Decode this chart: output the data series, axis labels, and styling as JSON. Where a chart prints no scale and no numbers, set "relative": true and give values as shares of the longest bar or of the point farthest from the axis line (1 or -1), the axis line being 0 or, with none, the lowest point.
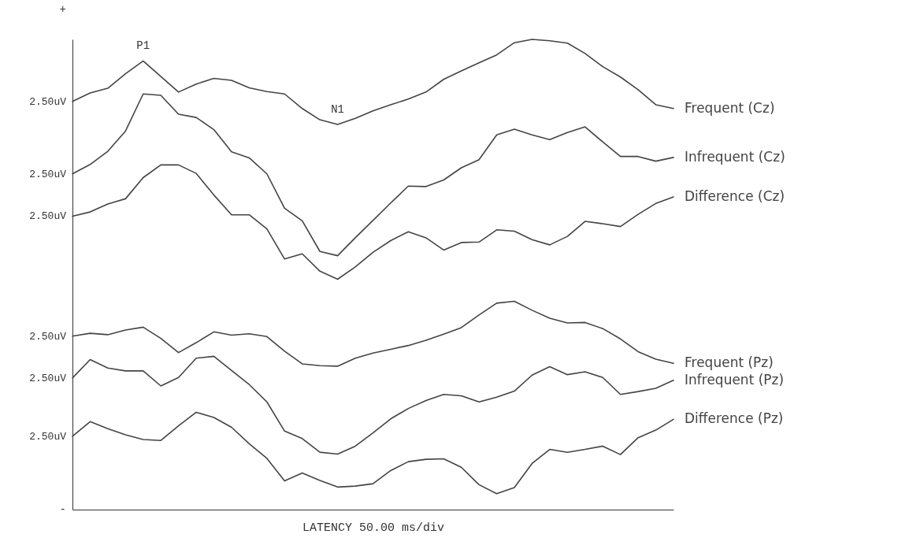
{
  "chart_data": {
    "type": "line",
    "relative": true,
    "xlabel": "LATENCY 50.00 ms/div",
    "categories": [
      null,
      null,
      null,
      null,
      null,
      null,
      null,
      null,
      null,
      null,
      null,
      null,
      null,
      null,
      null,
      null,
      null,
      null,
      null,
      null,
      null,
      null,
      null,
      null,
      null,
      null,
      null,
      null,
      null,
      null,
      null,
      null,
      null,
      null,
      null
    ],
    "grid": false,
    "legend": false,
    "marker": "none",
    "line_style": "solid",
    "series": [
      {
        "name": "Frequent (Cz)",
        "color": "#444444",
        "values": [
          0.868,
          0.886,
          0.896,
          0.927,
          0.954,
          0.921,
          0.888,
          0.905,
          0.917,
          0.913,
          0.897,
          0.889,
          0.884,
          0.853,
          0.829,
          0.819,
          0.832,
          0.848,
          0.861,
          0.873,
          0.888,
          0.915,
          0.933,
          0.95,
          0.967,
          0.993,
          1,
          0.997,
          0.992,
          0.97,
          0.942,
          0.92,
          0.893,
          0.861,
          0.853
        ]
      },
      {
        "name": "Infrequent (Cz)",
        "color": "#444444",
        "values": [
          0.714,
          0.734,
          0.762,
          0.805,
          0.884,
          0.881,
          0.841,
          0.834,
          0.808,
          0.761,
          0.748,
          0.714,
          0.641,
          0.614,
          0.549,
          0.54,
          0.578,
          0.615,
          0.652,
          0.688,
          0.687,
          0.701,
          0.727,
          0.744,
          0.797,
          0.809,
          0.797,
          0.787,
          0.802,
          0.814,
          0.782,
          0.751,
          0.751,
          0.741,
          0.749
        ]
      },
      {
        "name": "Difference (Cz)",
        "color": "#444444",
        "values": [
          0.624,
          0.633,
          0.65,
          0.661,
          0.706,
          0.733,
          0.733,
          0.715,
          0.669,
          0.627,
          0.627,
          0.597,
          0.533,
          0.544,
          0.507,
          0.49,
          0.516,
          0.547,
          0.572,
          0.591,
          0.578,
          0.552,
          0.568,
          0.569,
          0.595,
          0.592,
          0.574,
          0.563,
          0.581,
          0.613,
          0.608,
          0.602,
          0.628,
          0.651,
          0.665
        ]
      },
      {
        "name": "Frequent (Pz)",
        "color": "#444444",
        "values": [
          0.369,
          0.375,
          0.372,
          0.382,
          0.388,
          0.364,
          0.334,
          0.355,
          0.378,
          0.371,
          0.374,
          0.368,
          0.337,
          0.31,
          0.306,
          0.305,
          0.322,
          0.333,
          0.341,
          0.349,
          0.36,
          0.373,
          0.387,
          0.414,
          0.439,
          0.443,
          0.424,
          0.407,
          0.397,
          0.398,
          0.385,
          0.363,
          0.336,
          0.32,
          0.311
        ]
      },
      {
        "name": "Infrequent (Pz)",
        "color": "#444444",
        "values": [
          0.28,
          0.319,
          0.301,
          0.295,
          0.295,
          0.263,
          0.281,
          0.322,
          0.326,
          0.296,
          0.266,
          0.229,
          0.167,
          0.151,
          0.122,
          0.118,
          0.135,
          0.163,
          0.193,
          0.215,
          0.232,
          0.245,
          0.242,
          0.229,
          0.239,
          0.252,
          0.286,
          0.304,
          0.287,
          0.293,
          0.281,
          0.245,
          0.251,
          0.258,
          0.275
        ]
      },
      {
        "name": "Difference (Pz)",
        "color": "#444444",
        "values": [
          0.156,
          0.187,
          0.172,
          0.159,
          0.149,
          0.147,
          0.178,
          0.207,
          0.196,
          0.175,
          0.14,
          0.109,
          0.061,
          0.078,
          0.062,
          0.048,
          0.05,
          0.055,
          0.083,
          0.102,
          0.107,
          0.108,
          0.09,
          0.053,
          0.034,
          0.047,
          0.098,
          0.128,
          0.122,
          0.128,
          0.135,
          0.117,
          0.153,
          0.169,
          0.192
        ]
      }
    ],
    "annotations": [
      "P1",
      "N1",
      "+",
      "2.50uV",
      "2.50uV",
      "2.50uV",
      "2.50uV",
      "2.50uV",
      "2.50uV",
      "-"
    ]
  }
}
